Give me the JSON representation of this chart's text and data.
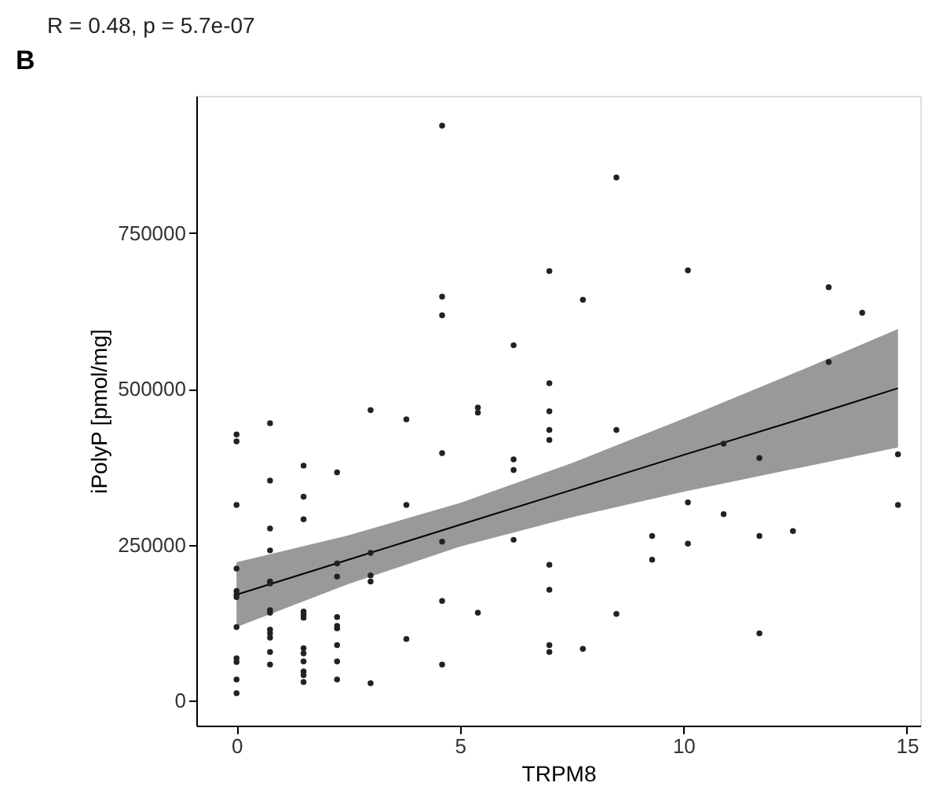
{
  "chart_data": {
    "type": "scatter",
    "title": "R = 0.48, p = 5.7e-07",
    "xlabel": "TRPM8",
    "ylabel": "iPolyP [pmol/mg]",
    "annotations": [
      "B"
    ],
    "xlim": [
      -0.9,
      15.3
    ],
    "xticks": [
      0,
      5,
      10,
      15
    ],
    "ylim": [
      -40000,
      970000
    ],
    "yticks": [
      0,
      250000,
      500000,
      750000
    ],
    "grid": false,
    "series": [
      {
        "color": "#222222",
        "marker": "circle",
        "x": [
          0,
          0,
          0,
          0,
          0,
          0,
          0,
          0,
          0,
          0,
          0,
          0,
          0.75,
          0.75,
          0.75,
          0.75,
          0.75,
          0.75,
          0.75,
          0.75,
          0.75,
          0.75,
          0.75,
          0.75,
          0.75,
          1.5,
          1.5,
          1.5,
          1.5,
          1.5,
          1.5,
          1.5,
          1.5,
          1.5,
          1.5,
          1.5,
          1.5,
          2.25,
          2.25,
          2.25,
          2.25,
          2.25,
          2.25,
          2.25,
          2.25,
          2.25,
          3,
          3,
          3,
          3,
          3,
          3.8,
          3.8,
          3.8,
          4.6,
          4.6,
          4.6,
          4.6,
          4.6,
          4.6,
          4.6,
          5.4,
          5.4,
          5.4,
          6.2,
          6.2,
          6.2,
          6.2,
          7,
          7,
          7,
          7,
          7,
          7,
          7,
          7,
          7,
          7.75,
          7.75,
          8.5,
          8.5,
          8.5,
          9.3,
          9.3,
          10.1,
          10.1,
          10.1,
          10.9,
          10.9,
          11.7,
          11.7,
          11.7,
          12.45,
          13.25,
          13.25,
          14,
          14.8,
          14.8
        ],
        "values": [
          427000,
          416000,
          314000,
          212000,
          176000,
          170000,
          166000,
          118000,
          68000,
          62000,
          34000,
          12000,
          445000,
          353000,
          276000,
          241000,
          191000,
          188000,
          145000,
          141000,
          114000,
          108000,
          101000,
          78000,
          58000,
          377000,
          327000,
          291000,
          143000,
          138000,
          133000,
          84000,
          76000,
          63000,
          47000,
          41000,
          30000,
          366000,
          220000,
          199000,
          134000,
          120000,
          116000,
          89000,
          63000,
          34000,
          466000,
          237000,
          201000,
          191000,
          28000,
          451000,
          314000,
          99000,
          922000,
          648000,
          618000,
          397000,
          255000,
          160000,
          58000,
          470000,
          462000,
          141000,
          570000,
          387000,
          370000,
          258000,
          689000,
          509000,
          464000,
          434000,
          418000,
          218000,
          178000,
          89000,
          78000,
          643000,
          83000,
          839000,
          434000,
          139000,
          264000,
          226000,
          690000,
          318000,
          252000,
          412000,
          299000,
          389000,
          264000,
          108000,
          272000,
          663000,
          543000,
          622000,
          395000,
          314000
        ]
      },
      {
        "type": "line",
        "color": "#000000",
        "marker": "none",
        "line_style": "solid",
        "x": [
          0,
          2.5,
          5,
          7.5,
          10,
          12.5,
          14.8
        ],
        "values": [
          170000,
          226000,
          282000,
          338000,
          394000,
          449000,
          501000
        ],
        "lower": [
          118000,
          187000,
          247000,
          294000,
          335000,
          372000,
          406000
        ],
        "upper": [
          222000,
          265000,
          317000,
          381000,
          452000,
          526000,
          596000
        ]
      }
    ]
  }
}
